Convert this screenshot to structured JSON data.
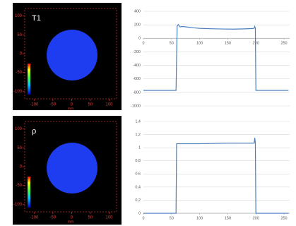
{
  "chart_data": [
    {
      "type": "image",
      "title": "T1",
      "xlabel": "mm",
      "xlim": [
        -125,
        120
      ],
      "ylim": [
        -120,
        120
      ],
      "xticks": [
        -100,
        -50,
        0,
        50,
        100
      ],
      "yticks": [
        -100,
        -50,
        0,
        50,
        100
      ],
      "color": "#1e3cf0"
    },
    {
      "type": "line",
      "xlim": [
        0,
        260
      ],
      "ylim": [
        -1000,
        400
      ],
      "xticks": [
        0,
        50,
        100,
        150,
        200,
        250
      ],
      "yticks": [
        400,
        200,
        0,
        -200,
        -400,
        -600,
        -800,
        -1000
      ],
      "grid": true,
      "x": [
        0,
        58,
        60,
        62,
        65,
        70,
        80,
        90,
        100,
        120,
        140,
        160,
        180,
        195,
        197,
        198,
        199,
        200,
        258
      ],
      "series": [
        {
          "color": "#4a7fbf",
          "values": [
            -770,
            -770,
            180,
            205,
            170,
            175,
            165,
            155,
            148,
            142,
            138,
            136,
            140,
            145,
            150,
            175,
            150,
            -770,
            -770
          ]
        }
      ]
    },
    {
      "type": "image",
      "title": "ρ",
      "xlabel": "mm",
      "xlim": [
        -125,
        120
      ],
      "ylim": [
        -120,
        120
      ],
      "xticks": [
        -100,
        -50,
        0,
        50,
        100
      ],
      "yticks": [
        -100,
        -50,
        0,
        50,
        100
      ],
      "color": "#1e3cf0"
    },
    {
      "type": "line",
      "xlim": [
        0,
        260
      ],
      "ylim": [
        0,
        1.4
      ],
      "xticks": [
        0,
        50,
        100,
        150,
        200,
        250
      ],
      "yticks": [
        {
          "value": 1.4,
          "label": "1,4"
        },
        {
          "value": 1.2,
          "label": "1,2"
        },
        1,
        {
          "value": 0.8,
          "label": "0,8"
        },
        {
          "value": 0.6,
          "label": "0,6"
        },
        {
          "value": 0.4,
          "label": "0,4"
        },
        {
          "value": 0.2,
          "label": "0,2"
        },
        0
      ],
      "grid": true,
      "x": [
        0,
        58,
        59,
        100,
        150,
        197,
        198,
        199,
        200,
        258
      ],
      "series": [
        {
          "color": "#4a7fbf",
          "values": [
            0,
            0,
            1.06,
            1.06,
            1.07,
            1.07,
            1.15,
            1.08,
            0,
            0
          ]
        }
      ]
    }
  ]
}
